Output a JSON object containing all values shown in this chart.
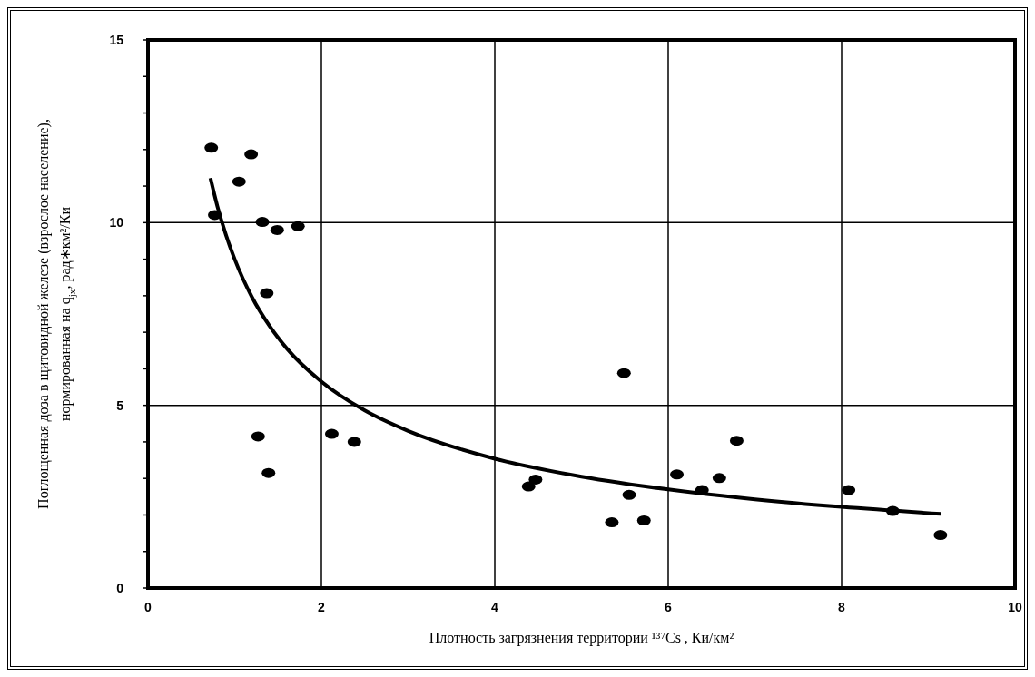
{
  "chart_data": {
    "type": "scatter",
    "xlabel": "Плотность загрязнения территории ¹³⁷Cs , Ки/км²",
    "ylabel": "Поглощенная  доза в щитовидной  железе (взрослое  население),\nнормированная на q$_{jx}$, рад∗км²/Ки",
    "xlim": [
      0,
      10
    ],
    "xticks": [
      0,
      2,
      4,
      6,
      8,
      10
    ],
    "ylim": [
      0,
      15
    ],
    "yticks": [
      0,
      {
        "value": 1,
        "label": null
      },
      {
        "value": 2,
        "label": null
      },
      {
        "value": 3,
        "label": null
      },
      {
        "value": 4,
        "label": null
      },
      5,
      {
        "value": 6,
        "label": null
      },
      {
        "value": 7,
        "label": null
      },
      {
        "value": 8,
        "label": null
      },
      {
        "value": 9,
        "label": null
      },
      10,
      {
        "value": 11,
        "label": null
      },
      {
        "value": 12,
        "label": null
      },
      {
        "value": 13,
        "label": null
      },
      {
        "value": 14,
        "label": null
      },
      15
    ],
    "grid": true,
    "marker": "circle",
    "legend": false,
    "series": [
      {
        "color": "#000000",
        "x": [
          0.73,
          1.19,
          1.05,
          0.77,
          1.32,
          1.49,
          1.73,
          1.37,
          1.27,
          1.39,
          2.12,
          2.38,
          4.47,
          4.39,
          5.49,
          5.55,
          5.35,
          5.72,
          6.1,
          6.59,
          6.39,
          6.79,
          8.08,
          8.59,
          9.14
        ],
        "values": [
          12.05,
          11.87,
          11.12,
          10.21,
          10.02,
          9.8,
          9.9,
          8.07,
          4.15,
          3.15,
          4.22,
          4.0,
          2.97,
          2.78,
          5.88,
          2.55,
          1.8,
          1.85,
          3.11,
          3.01,
          2.68,
          4.03,
          2.68,
          2.11,
          1.45
        ]
      },
      {
        "type": "line",
        "color": "#000000",
        "marker": "none",
        "line_style": "solid",
        "x": [
          0.72,
          0.8,
          0.9,
          1.0,
          1.2,
          1.4,
          1.6,
          2.0,
          2.5,
          3,
          4,
          5,
          6,
          7,
          8,
          9.15
        ],
        "values": [
          11.22,
          10.45,
          9.66,
          9.0,
          7.96,
          7.18,
          6.56,
          5.65,
          4.86,
          4.3,
          3.54,
          3.05,
          2.7,
          2.43,
          2.22,
          2.03
        ]
      }
    ]
  }
}
